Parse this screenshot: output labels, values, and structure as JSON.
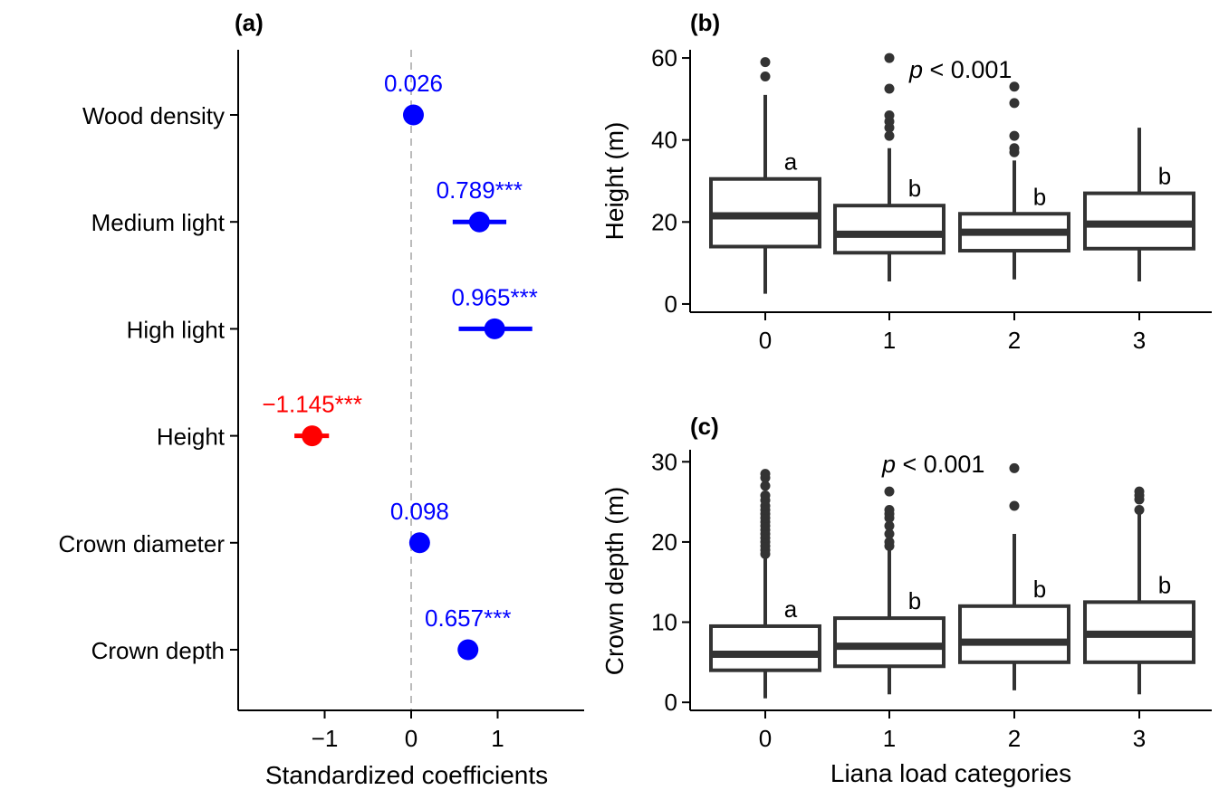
{
  "chart_data": [
    {
      "panel": "(a)",
      "type": "scatter",
      "xlabel": "Standardized coefficients",
      "ylabel": "",
      "xlim": [
        -2,
        2
      ],
      "xticks": [
        "−1",
        "0",
        "1"
      ],
      "xtick_values": [
        -1,
        0,
        1
      ],
      "reference_line": 0,
      "colors": {
        "positive": "#0000ff",
        "negative": "#ff0000",
        "reference": "#bbbbbb"
      },
      "points": [
        {
          "name": "Wood density",
          "value": 0.026,
          "ci": [
            -0.05,
            0.11
          ],
          "label": "0.026"
        },
        {
          "name": "Medium light",
          "value": 0.789,
          "ci": [
            0.48,
            1.1
          ],
          "label": "0.789***"
        },
        {
          "name": "High light",
          "value": 0.965,
          "ci": [
            0.55,
            1.4
          ],
          "label": "0.965***"
        },
        {
          "name": "Height",
          "value": -1.145,
          "ci": [
            -1.35,
            -0.95
          ],
          "label": "−1.145***"
        },
        {
          "name": "Crown diameter",
          "value": 0.098,
          "ci": [
            0.02,
            0.18
          ],
          "label": "0.098"
        },
        {
          "name": "Crown depth",
          "value": 0.657,
          "ci": [
            0.55,
            0.76
          ],
          "label": "0.657***"
        }
      ]
    },
    {
      "panel": "(b)",
      "type": "box",
      "ylabel": "Height (m)",
      "xlabel": "",
      "ylim": [
        -2,
        62
      ],
      "yticks": [
        0,
        20,
        40,
        60
      ],
      "annotation": {
        "italic": "p",
        "rest": " < 0.001"
      },
      "categories": [
        "0",
        "1",
        "2",
        "3"
      ],
      "boxes": [
        {
          "category": "0",
          "min": 2.5,
          "q1": 14,
          "median": 21.5,
          "q3": 30.5,
          "max": 51,
          "outliers": [
            55.5,
            59
          ],
          "letter": "a"
        },
        {
          "category": "1",
          "min": 5.5,
          "q1": 12.5,
          "median": 17,
          "q3": 24,
          "max": 38,
          "outliers": [
            41,
            43,
            44.5,
            46,
            52.5,
            60
          ],
          "letter": "b"
        },
        {
          "category": "2",
          "min": 6,
          "q1": 13,
          "median": 17.5,
          "q3": 22,
          "max": 35,
          "outliers": [
            37,
            38,
            41,
            49,
            53
          ],
          "letter": "b"
        },
        {
          "category": "3",
          "min": 5.5,
          "q1": 13.5,
          "median": 19.5,
          "q3": 27,
          "max": 43,
          "outliers": [],
          "letter": "b"
        }
      ]
    },
    {
      "panel": "(c)",
      "type": "box",
      "ylabel": "Crown depth (m)",
      "xlabel": "Liana load categories",
      "ylim": [
        -1,
        31.5
      ],
      "yticks": [
        0,
        10,
        20,
        30
      ],
      "annotation": {
        "italic": "p",
        "rest": " < 0.001"
      },
      "categories": [
        "0",
        "1",
        "2",
        "3"
      ],
      "boxes": [
        {
          "category": "0",
          "min": 0.5,
          "q1": 4,
          "median": 6,
          "q3": 9.5,
          "max": 18,
          "outliers": [
            18.5,
            19,
            19.5,
            20,
            20.5,
            21,
            21.5,
            22,
            22.5,
            23,
            23.5,
            24,
            24.5,
            25.2,
            25.8,
            27,
            28,
            28.5
          ],
          "letter": "a"
        },
        {
          "category": "1",
          "min": 1,
          "q1": 4.5,
          "median": 7,
          "q3": 10.5,
          "max": 19,
          "outliers": [
            19.5,
            20,
            21,
            22,
            23,
            23.5,
            24,
            26.3
          ],
          "letter": "b"
        },
        {
          "category": "2",
          "min": 1.5,
          "q1": 5,
          "median": 7.5,
          "q3": 12,
          "max": 21,
          "outliers": [
            24.5,
            29.2
          ],
          "letter": "b"
        },
        {
          "category": "3",
          "min": 1,
          "q1": 5,
          "median": 8.5,
          "q3": 12.5,
          "max": 23.5,
          "outliers": [
            24,
            25.3,
            25.8,
            26.3
          ],
          "letter": "b"
        }
      ]
    }
  ]
}
